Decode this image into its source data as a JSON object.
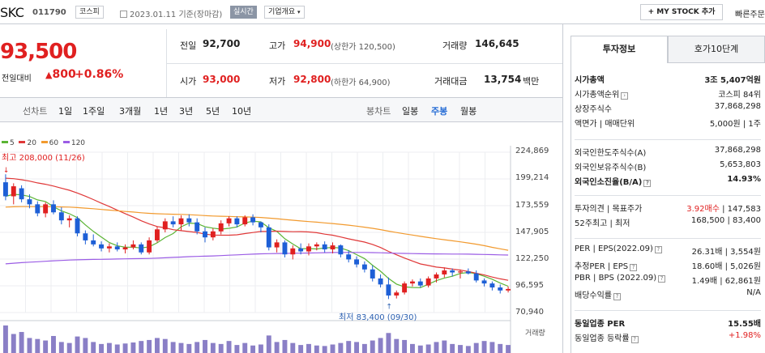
{
  "header": {
    "company": "SKC",
    "code": "011790",
    "market": "코스피",
    "date": "2023.01.11",
    "date_basis": "기준(장마감)",
    "realtime": "실시간",
    "overview": "기업개요",
    "overview_icon": "chevron-down-icon",
    "my_stock": "+ MY STOCK 추가",
    "quick_order": "빠른주문"
  },
  "price": {
    "current": "93,500",
    "change_label": "전일대비",
    "change_value": "800",
    "change_pct": "+0.86%",
    "color_up": "#e02020"
  },
  "quote": {
    "prev_label": "전일",
    "prev": "92,700",
    "high_label": "고가",
    "high": "94,900",
    "upper_limit": "(상한가 120,500)",
    "volume_label": "거래량",
    "volume": "146,645",
    "open_label": "시가",
    "open": "93,000",
    "low_label": "저가",
    "low": "92,800",
    "lower_limit": "(하한가 64,900)",
    "amount_label": "거래대금",
    "amount": "13,754",
    "amount_unit": "백만"
  },
  "periods": {
    "line_label": "선차트",
    "line_items": [
      "1일",
      "1주일",
      "3개월",
      "1년",
      "3년",
      "5년",
      "10년"
    ],
    "candle_label": "봉차트",
    "candle_items": [
      "일봉",
      "주봉",
      "월봉"
    ],
    "candle_active": "주봉"
  },
  "chart_data": {
    "type": "candlestick",
    "title": "SKC 주봉",
    "ylim": [
      70000,
      230000
    ],
    "yticks": [
      "224,869",
      "199,214",
      "173,559",
      "147,905",
      "122,250",
      "96,595",
      "70,940"
    ],
    "ma_legend": [
      {
        "name": "5",
        "color": "#5bb434"
      },
      {
        "name": "20",
        "color": "#e03838"
      },
      {
        "name": "60",
        "color": "#f29a2e"
      },
      {
        "name": "120",
        "color": "#9b5de5"
      }
    ],
    "max_label": "최고 208,000 (11/26)",
    "min_label": "최저 83,400 (09/30)",
    "volume_label": "거래량",
    "candles": [
      [
        200000,
        208000,
        182000,
        186000
      ],
      [
        186000,
        199000,
        178000,
        196000
      ],
      [
        194000,
        197000,
        180000,
        183000
      ],
      [
        183000,
        188000,
        174000,
        178000
      ],
      [
        178000,
        181000,
        166000,
        169000
      ],
      [
        169000,
        180000,
        165000,
        178000
      ],
      [
        178000,
        182000,
        168000,
        170000
      ],
      [
        170000,
        175000,
        158000,
        162000
      ],
      [
        162000,
        167000,
        155000,
        164000
      ],
      [
        164000,
        166000,
        146000,
        149000
      ],
      [
        149000,
        152000,
        138000,
        142000
      ],
      [
        142000,
        148000,
        136000,
        138000
      ],
      [
        138000,
        141000,
        131000,
        134000
      ],
      [
        134000,
        139000,
        130000,
        136000
      ],
      [
        136000,
        140000,
        131000,
        133000
      ],
      [
        133000,
        138000,
        129000,
        135000
      ],
      [
        135000,
        142000,
        133000,
        138000
      ],
      [
        138000,
        140000,
        128000,
        130000
      ],
      [
        130000,
        145000,
        128000,
        142000
      ],
      [
        142000,
        156000,
        140000,
        153000
      ],
      [
        153000,
        164000,
        150000,
        161000
      ],
      [
        161000,
        166000,
        155000,
        158000
      ],
      [
        158000,
        167000,
        152000,
        164000
      ],
      [
        164000,
        168000,
        156000,
        160000
      ],
      [
        160000,
        164000,
        148000,
        151000
      ],
      [
        151000,
        155000,
        140000,
        145000
      ],
      [
        145000,
        154000,
        142000,
        151000
      ],
      [
        151000,
        162000,
        148000,
        159000
      ],
      [
        159000,
        166000,
        156000,
        164000
      ],
      [
        164000,
        166000,
        155000,
        158000
      ],
      [
        158000,
        167000,
        156000,
        165000
      ],
      [
        165000,
        168000,
        157000,
        160000
      ],
      [
        160000,
        161000,
        150000,
        155000
      ],
      [
        155000,
        158000,
        132000,
        135000
      ],
      [
        135000,
        143000,
        130000,
        140000
      ],
      [
        140000,
        142000,
        125000,
        128000
      ],
      [
        128000,
        137000,
        123000,
        134000
      ],
      [
        134000,
        139000,
        128000,
        131000
      ],
      [
        131000,
        139000,
        127000,
        136000
      ],
      [
        136000,
        140000,
        132000,
        138000
      ],
      [
        138000,
        141000,
        130000,
        133000
      ],
      [
        133000,
        140000,
        129000,
        137000
      ],
      [
        137000,
        138000,
        125000,
        128000
      ],
      [
        128000,
        132000,
        120000,
        123000
      ],
      [
        123000,
        126000,
        115000,
        118000
      ],
      [
        118000,
        121000,
        110000,
        113000
      ],
      [
        113000,
        117000,
        101000,
        104000
      ],
      [
        104000,
        108000,
        95000,
        98000
      ],
      [
        98000,
        105000,
        83400,
        87000
      ],
      [
        87000,
        92000,
        84000,
        90000
      ],
      [
        90000,
        101000,
        88000,
        99000
      ],
      [
        99000,
        103000,
        96000,
        101000
      ],
      [
        101000,
        104000,
        95000,
        97000
      ],
      [
        97000,
        106000,
        95000,
        104000
      ],
      [
        104000,
        110000,
        100000,
        108000
      ],
      [
        108000,
        115000,
        105000,
        112000
      ],
      [
        112000,
        114000,
        106000,
        110000
      ],
      [
        110000,
        113000,
        104000,
        111000
      ],
      [
        111000,
        114000,
        108000,
        109000
      ],
      [
        109000,
        112000,
        100000,
        102000
      ],
      [
        102000,
        104000,
        96000,
        99000
      ],
      [
        99000,
        101000,
        92000,
        95000
      ],
      [
        95000,
        98000,
        89000,
        92000
      ],
      [
        92000,
        96000,
        90000,
        93500
      ]
    ],
    "volumes": [
      55,
      38,
      42,
      30,
      28,
      25,
      34,
      22,
      20,
      33,
      30,
      22,
      18,
      20,
      17,
      19,
      21,
      24,
      26,
      30,
      28,
      22,
      20,
      18,
      22,
      26,
      20,
      18,
      24,
      16,
      20,
      15,
      17,
      35,
      22,
      26,
      20,
      16,
      18,
      15,
      14,
      17,
      20,
      24,
      22,
      18,
      25,
      30,
      40,
      28,
      26,
      18,
      15,
      17,
      22,
      25,
      18,
      16,
      14,
      20,
      24,
      22,
      18,
      16
    ]
  },
  "info": {
    "tab_active": "투자정보",
    "tab_other": "호가10단계",
    "rows1": [
      {
        "l": "시가총액",
        "r": "3조 5,407억원",
        "bold": true
      },
      {
        "l": "시가총액순위",
        "r": "코스피 84위",
        "icon": "›"
      },
      {
        "l": "상장주식수",
        "r": "37,868,298"
      },
      {
        "l": "액면가 | 매매단위",
        "r": "5,000원 | 1주"
      }
    ],
    "rows2": [
      {
        "l": "외국인한도주식수(A)",
        "r": "37,868,298"
      },
      {
        "l": "외국인보유주식수(B)",
        "r": "5,653,803"
      },
      {
        "l": "외국인소진율(B/A)",
        "r": "14.93%",
        "bold": true,
        "icon": "?"
      }
    ],
    "rows3": [
      {
        "l": "투자의견 | 목표주가",
        "r_red": "3.92매수",
        "r": "| 147,583"
      },
      {
        "l": "52주최고 | 최저",
        "r": "168,500 | 83,400"
      }
    ],
    "rows4": [
      {
        "l": "PER | EPS(2022.09)",
        "r": "26.31배 | 3,554원",
        "icon": "?"
      },
      {
        "l": "추정PER | EPS",
        "r": "18.60배 | 5,026원",
        "icon": "?"
      },
      {
        "l": "PBR | BPS (2022.09)",
        "r": "1.49배 | 62,861원",
        "icon": "?"
      },
      {
        "l": "배당수익률",
        "r": "N/A",
        "icon": "?"
      }
    ],
    "rows5": [
      {
        "l": "동일업종 PER",
        "r": "15.55배",
        "bold": true
      },
      {
        "l": "동일업종 등락률",
        "r": "+1.98%",
        "icon": "?",
        "red": true
      }
    ]
  }
}
